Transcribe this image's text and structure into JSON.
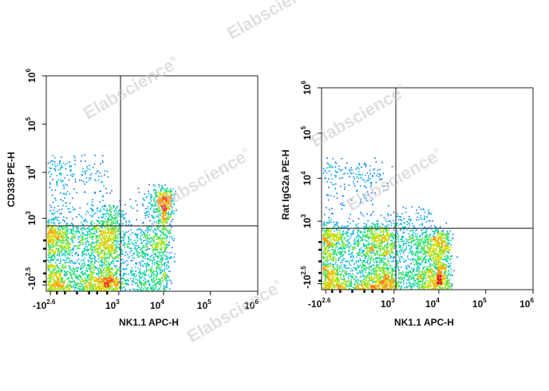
{
  "watermark": "Elabscience",
  "watermark_mark": "®",
  "chart_data": [
    {
      "type": "scatter",
      "subtype": "flow-cytometry-density",
      "title": "",
      "xlabel": "NK1.1 APC-H",
      "ylabel": "CD335 PE-H",
      "x_scale": "biexponential",
      "y_scale": "biexponential",
      "x_ticks": [
        {
          "base": "-10",
          "exp": "2.6",
          "value": -398
        },
        {
          "base": "10",
          "exp": "3",
          "value": 1000
        },
        {
          "base": "10",
          "exp": "4",
          "value": 10000
        },
        {
          "base": "10",
          "exp": "5",
          "value": 100000
        },
        {
          "base": "10",
          "exp": "6",
          "value": 1000000
        }
      ],
      "y_ticks": [
        {
          "base": "-10",
          "exp": "2.5",
          "value": -316
        },
        {
          "base": "10",
          "exp": "3",
          "value": 1000
        },
        {
          "base": "10",
          "exp": "4",
          "value": 10000
        },
        {
          "base": "10",
          "exp": "5",
          "value": 100000
        },
        {
          "base": "10",
          "exp": "6",
          "value": 1000000
        }
      ],
      "gate": {
        "x": 1100,
        "y": 650
      },
      "populations": [
        {
          "cx": -100,
          "cy": -100,
          "sx": 550,
          "sy": 420,
          "n": 3400,
          "kind": "main"
        },
        {
          "cx": 3000,
          "cy": -30,
          "sx": 2200,
          "sy": 300,
          "n": 650,
          "kind": "minor"
        },
        {
          "cx": 9500,
          "cy": 1700,
          "sx": 3200,
          "sy": 1400,
          "n": 650,
          "kind": "minor"
        },
        {
          "cx": 9000,
          "cy": -20,
          "sx": 2200,
          "sy": 250,
          "n": 250,
          "kind": "minor"
        },
        {
          "cx": -50,
          "cy": 6000,
          "sx": 280,
          "sy": 7000,
          "n": 260,
          "kind": "sparse"
        },
        {
          "cx": 400,
          "cy": 900,
          "sx": 500,
          "sy": 700,
          "n": 320,
          "kind": "sparse"
        }
      ]
    },
    {
      "type": "scatter",
      "subtype": "flow-cytometry-density",
      "title": "",
      "xlabel": "NK1.1 APC-H",
      "ylabel": "Rat IgG2a PE-H",
      "x_scale": "biexponential",
      "y_scale": "biexponential",
      "x_ticks": [
        {
          "base": "-10",
          "exp": "2.6",
          "value": -398
        },
        {
          "base": "10",
          "exp": "3",
          "value": 1000
        },
        {
          "base": "10",
          "exp": "4",
          "value": 10000
        },
        {
          "base": "10",
          "exp": "5",
          "value": 100000
        },
        {
          "base": "10",
          "exp": "6",
          "value": 1000000
        }
      ],
      "y_ticks": [
        {
          "base": "-10",
          "exp": "2.5",
          "value": -316
        },
        {
          "base": "10",
          "exp": "3",
          "value": 1000
        },
        {
          "base": "10",
          "exp": "4",
          "value": 10000
        },
        {
          "base": "10",
          "exp": "5",
          "value": 100000
        },
        {
          "base": "10",
          "exp": "6",
          "value": 1000000
        }
      ],
      "gate": {
        "x": 1100,
        "y": 650
      },
      "populations": [
        {
          "cx": -100,
          "cy": -100,
          "sx": 550,
          "sy": 420,
          "n": 3400,
          "kind": "main"
        },
        {
          "cx": 9000,
          "cy": -60,
          "sx": 4200,
          "sy": 300,
          "n": 1150,
          "kind": "minor"
        },
        {
          "cx": 2500,
          "cy": -20,
          "sx": 1800,
          "sy": 250,
          "n": 450,
          "kind": "minor"
        },
        {
          "cx": -60,
          "cy": 8000,
          "sx": 280,
          "sy": 9000,
          "n": 260,
          "kind": "sparse"
        },
        {
          "cx": 2000,
          "cy": 900,
          "sx": 2000,
          "sy": 600,
          "n": 180,
          "kind": "sparse"
        }
      ]
    }
  ]
}
